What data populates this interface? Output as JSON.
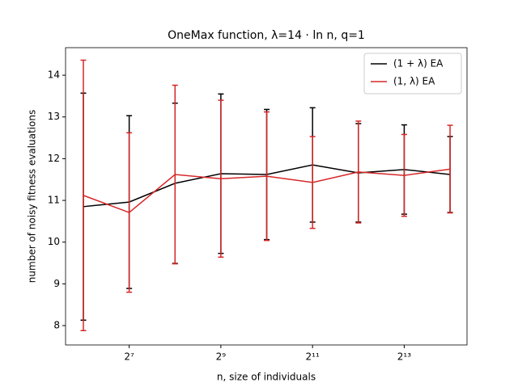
{
  "chart_data": {
    "type": "line",
    "title": "OneMax function, λ=14 · ln n, q=1",
    "xlabel": "n, size of individuals",
    "ylabel": "number of noisy fitness evaluations",
    "x": [
      64,
      128,
      256,
      512,
      1024,
      2048,
      4096,
      8192,
      16384
    ],
    "xscale": "log2",
    "xlim": [
      48.9,
      21170
    ],
    "xticks": [
      {
        "value": 128,
        "label": "2⁷"
      },
      {
        "value": 512,
        "label": "2⁹"
      },
      {
        "value": 2048,
        "label": "2¹¹"
      },
      {
        "value": 8192,
        "label": "2¹³"
      }
    ],
    "ylim": [
      7.536,
      14.66
    ],
    "yticks": [
      8,
      9,
      10,
      11,
      12,
      13,
      14
    ],
    "legend": "upper right",
    "series": [
      {
        "name": "(1 + λ) EA",
        "color": "#000000",
        "values": [
          10.85,
          10.96,
          11.41,
          11.64,
          11.62,
          11.85,
          11.66,
          11.74,
          11.62
        ],
        "errors": [
          2.72,
          2.07,
          1.92,
          1.91,
          1.56,
          1.37,
          1.18,
          1.07,
          0.91
        ]
      },
      {
        "name": "(1, λ) EA",
        "color": "#d62728",
        "values": [
          11.12,
          10.71,
          11.62,
          11.52,
          11.58,
          11.43,
          11.68,
          11.6,
          11.75
        ],
        "errors": [
          3.24,
          1.91,
          2.14,
          1.88,
          1.54,
          1.1,
          1.22,
          0.98,
          1.05
        ]
      }
    ]
  }
}
